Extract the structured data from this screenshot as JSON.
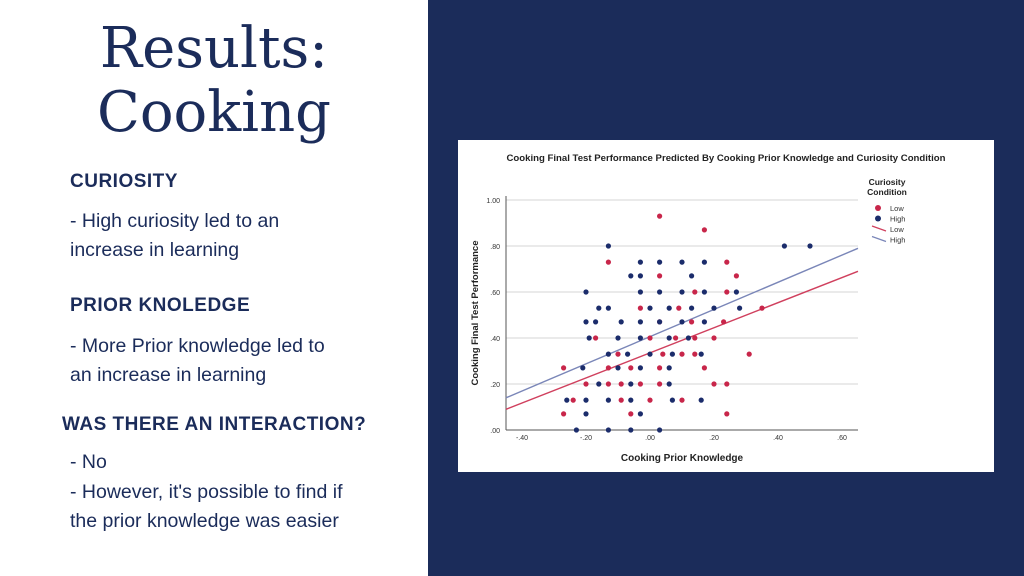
{
  "slide": {
    "title_line1": "Results:",
    "title_line2": "Cooking",
    "sections": [
      {
        "heading": "CURIOSITY",
        "lines": [
          "- High curiosity led to an",
          "increase in learning"
        ]
      },
      {
        "heading": "PRIOR KNOLEDGE",
        "lines": [
          "- More Prior knowledge led to",
          "an increase in learning"
        ]
      },
      {
        "heading": "WAS THERE AN INTERACTION?",
        "lines": [
          "- No",
          "- However, it's possible to find if",
          "the prior knowledge was easier"
        ]
      }
    ],
    "colors": {
      "navy": "#1b2c5a",
      "white": "#ffffff"
    }
  },
  "chart_data": {
    "type": "scatter",
    "title": "Cooking Final Test Performance Predicted By Cooking Prior Knowledge and Curiosity Condition",
    "xlabel": "Cooking Prior Knowledge",
    "ylabel": "Cooking Final Test Performance",
    "xlim": [
      -0.45,
      0.65
    ],
    "ylim": [
      0.0,
      1.0
    ],
    "x_ticks": [
      -0.4,
      -0.2,
      0.0,
      0.2,
      0.4,
      0.6
    ],
    "x_tick_labels": [
      "-.40",
      "-.20",
      ".00",
      ".20",
      ".40",
      ".60"
    ],
    "y_ticks": [
      0.0,
      0.2,
      0.4,
      0.6,
      0.8,
      1.0
    ],
    "y_tick_labels": [
      ".00",
      ".20",
      ".40",
      ".60",
      ".80",
      "1.00"
    ],
    "grid": "horizontal",
    "legend": {
      "title_lines": [
        "Curiosity",
        "Condition"
      ],
      "position": "top-right",
      "entries": [
        {
          "label": "Low",
          "kind": "point",
          "color": "#c8264a"
        },
        {
          "label": "High",
          "kind": "point",
          "color": "#1b2c6b"
        },
        {
          "label": "Low",
          "kind": "line",
          "color": "#d0405e"
        },
        {
          "label": "High",
          "kind": "line",
          "color": "#7a86b8"
        }
      ]
    },
    "series": [
      {
        "name": "Low",
        "color": "#c8264a",
        "points": [
          [
            0.03,
            0.93
          ],
          [
            0.17,
            0.87
          ],
          [
            -0.13,
            0.73
          ],
          [
            0.24,
            0.73
          ],
          [
            0.03,
            0.67
          ],
          [
            0.27,
            0.67
          ],
          [
            0.14,
            0.6
          ],
          [
            0.24,
            0.6
          ],
          [
            -0.03,
            0.53
          ],
          [
            0.09,
            0.53
          ],
          [
            0.35,
            0.53
          ],
          [
            0.03,
            0.47
          ],
          [
            0.13,
            0.47
          ],
          [
            0.23,
            0.47
          ],
          [
            -0.17,
            0.4
          ],
          [
            0.0,
            0.4
          ],
          [
            0.08,
            0.4
          ],
          [
            0.14,
            0.4
          ],
          [
            0.2,
            0.4
          ],
          [
            -0.1,
            0.33
          ],
          [
            0.04,
            0.33
          ],
          [
            0.1,
            0.33
          ],
          [
            0.14,
            0.33
          ],
          [
            0.31,
            0.33
          ],
          [
            -0.27,
            0.27
          ],
          [
            -0.13,
            0.27
          ],
          [
            -0.06,
            0.27
          ],
          [
            0.03,
            0.27
          ],
          [
            0.17,
            0.27
          ],
          [
            -0.2,
            0.2
          ],
          [
            -0.13,
            0.2
          ],
          [
            -0.09,
            0.2
          ],
          [
            -0.03,
            0.2
          ],
          [
            0.03,
            0.2
          ],
          [
            0.2,
            0.2
          ],
          [
            0.24,
            0.2
          ],
          [
            -0.24,
            0.13
          ],
          [
            -0.09,
            0.13
          ],
          [
            0.0,
            0.13
          ],
          [
            0.1,
            0.13
          ],
          [
            -0.27,
            0.07
          ],
          [
            -0.06,
            0.07
          ],
          [
            0.24,
            0.07
          ]
        ]
      },
      {
        "name": "High",
        "color": "#1b2c6b",
        "points": [
          [
            -0.13,
            0.8
          ],
          [
            0.42,
            0.8
          ],
          [
            0.5,
            0.8
          ],
          [
            -0.03,
            0.73
          ],
          [
            0.03,
            0.73
          ],
          [
            0.1,
            0.73
          ],
          [
            0.17,
            0.73
          ],
          [
            -0.06,
            0.67
          ],
          [
            -0.03,
            0.67
          ],
          [
            0.13,
            0.67
          ],
          [
            -0.2,
            0.6
          ],
          [
            -0.03,
            0.6
          ],
          [
            0.03,
            0.6
          ],
          [
            0.1,
            0.6
          ],
          [
            0.17,
            0.6
          ],
          [
            0.27,
            0.6
          ],
          [
            -0.16,
            0.53
          ],
          [
            -0.13,
            0.53
          ],
          [
            0.0,
            0.53
          ],
          [
            0.06,
            0.53
          ],
          [
            0.13,
            0.53
          ],
          [
            0.2,
            0.53
          ],
          [
            0.28,
            0.53
          ],
          [
            -0.2,
            0.47
          ],
          [
            -0.17,
            0.47
          ],
          [
            -0.09,
            0.47
          ],
          [
            -0.03,
            0.47
          ],
          [
            0.03,
            0.47
          ],
          [
            0.1,
            0.47
          ],
          [
            0.17,
            0.47
          ],
          [
            -0.19,
            0.4
          ],
          [
            -0.1,
            0.4
          ],
          [
            -0.03,
            0.4
          ],
          [
            0.06,
            0.4
          ],
          [
            0.12,
            0.4
          ],
          [
            -0.13,
            0.33
          ],
          [
            -0.07,
            0.33
          ],
          [
            0.0,
            0.33
          ],
          [
            0.07,
            0.33
          ],
          [
            0.16,
            0.33
          ],
          [
            -0.21,
            0.27
          ],
          [
            -0.1,
            0.27
          ],
          [
            -0.03,
            0.27
          ],
          [
            0.06,
            0.27
          ],
          [
            -0.16,
            0.2
          ],
          [
            -0.06,
            0.2
          ],
          [
            0.06,
            0.2
          ],
          [
            -0.26,
            0.13
          ],
          [
            -0.2,
            0.13
          ],
          [
            -0.13,
            0.13
          ],
          [
            -0.06,
            0.13
          ],
          [
            0.07,
            0.13
          ],
          [
            0.16,
            0.13
          ],
          [
            -0.2,
            0.07
          ],
          [
            -0.03,
            0.07
          ],
          [
            -0.23,
            0.0
          ],
          [
            -0.13,
            0.0
          ],
          [
            -0.06,
            0.0
          ],
          [
            0.03,
            0.0
          ]
        ]
      }
    ],
    "fit_lines": [
      {
        "name": "Low",
        "color": "#d0405e",
        "x": [
          -0.45,
          0.65
        ],
        "y": [
          0.09,
          0.69
        ]
      },
      {
        "name": "High",
        "color": "#7a86b8",
        "x": [
          -0.45,
          0.65
        ],
        "y": [
          0.14,
          0.79
        ]
      }
    ]
  }
}
